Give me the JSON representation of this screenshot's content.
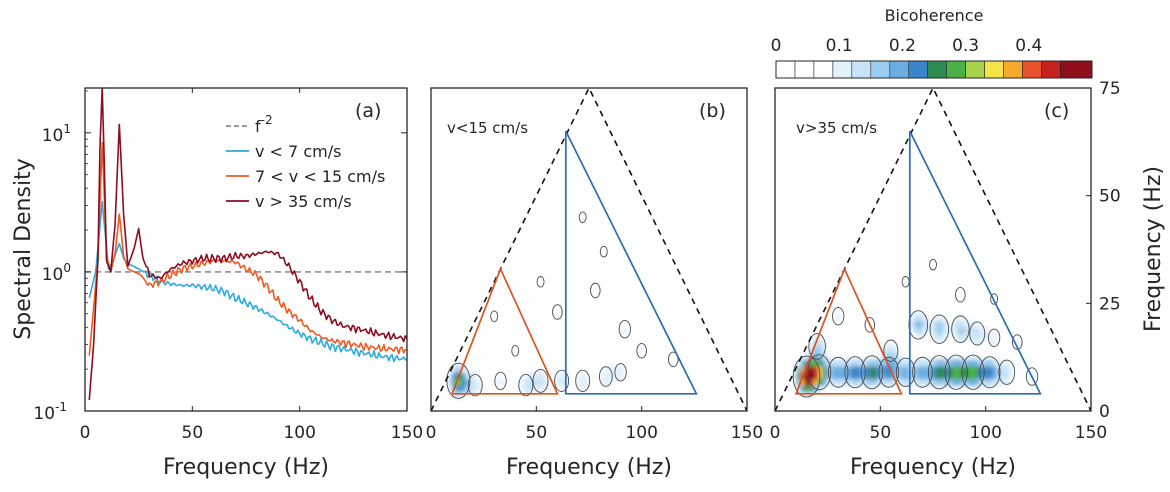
{
  "chart_data": [
    {
      "type": "line",
      "panel": "(a)",
      "xlabel": "Frequency (Hz)",
      "ylabel": "Spectral Density",
      "xlim": [
        0,
        150
      ],
      "ylim": [
        0.1,
        21
      ],
      "yscale": "log",
      "xticks": [
        "0",
        "50",
        "100",
        "150"
      ],
      "yticks": [
        {
          "value": 0.1,
          "base": "10",
          "exp": "-1"
        },
        {
          "value": 1,
          "base": "10",
          "exp": "0"
        },
        {
          "value": 10,
          "base": "10",
          "exp": "1"
        }
      ],
      "legend": [
        {
          "label": "f",
          "sup": "-2",
          "color": "#7f7f7f",
          "dash": true
        },
        {
          "label": "v < 7 cm/s",
          "color": "#2eaadf"
        },
        {
          "label": "7 < v < 15 cm/s",
          "color": "#ef5a1e"
        },
        {
          "label": "v > 35 cm/s",
          "color": "#8c0d1f"
        }
      ],
      "reference_level": 1.0,
      "series": [
        {
          "name": "v < 7 cm/s",
          "color": "#2eaadf",
          "points": [
            [
              2,
              0.65
            ],
            [
              5,
              1.0
            ],
            [
              8,
              3.2
            ],
            [
              9,
              2.2
            ],
            [
              11,
              1.05
            ],
            [
              13,
              1.2
            ],
            [
              16,
              1.6
            ],
            [
              18,
              1.25
            ],
            [
              20,
              1.15
            ],
            [
              25,
              1.05
            ],
            [
              30,
              0.95
            ],
            [
              35,
              0.85
            ],
            [
              40,
              0.82
            ],
            [
              45,
              0.8
            ],
            [
              50,
              0.8
            ],
            [
              55,
              0.78
            ],
            [
              60,
              0.76
            ],
            [
              65,
              0.72
            ],
            [
              70,
              0.65
            ],
            [
              75,
              0.6
            ],
            [
              80,
              0.55
            ],
            [
              85,
              0.5
            ],
            [
              90,
              0.45
            ],
            [
              95,
              0.4
            ],
            [
              100,
              0.36
            ],
            [
              105,
              0.33
            ],
            [
              110,
              0.31
            ],
            [
              115,
              0.29
            ],
            [
              120,
              0.28
            ],
            [
              130,
              0.26
            ],
            [
              140,
              0.245
            ],
            [
              150,
              0.235
            ]
          ]
        },
        {
          "name": "7 < v < 15 cm/s",
          "color": "#ef5a1e",
          "points": [
            [
              2,
              0.25
            ],
            [
              4,
              0.55
            ],
            [
              6,
              1.2
            ],
            [
              8,
              8.5
            ],
            [
              9,
              3.5
            ],
            [
              10,
              1.3
            ],
            [
              12,
              1.0
            ],
            [
              14,
              1.35
            ],
            [
              16,
              2.6
            ],
            [
              18,
              1.3
            ],
            [
              20,
              1.05
            ],
            [
              23,
              1.0
            ],
            [
              26,
              0.95
            ],
            [
              30,
              0.8
            ],
            [
              35,
              0.85
            ],
            [
              40,
              0.95
            ],
            [
              45,
              1.05
            ],
            [
              50,
              1.1
            ],
            [
              55,
              1.15
            ],
            [
              60,
              1.2
            ],
            [
              65,
              1.2
            ],
            [
              70,
              1.18
            ],
            [
              75,
              1.05
            ],
            [
              80,
              0.95
            ],
            [
              85,
              0.78
            ],
            [
              90,
              0.62
            ],
            [
              95,
              0.52
            ],
            [
              100,
              0.45
            ],
            [
              105,
              0.38
            ],
            [
              110,
              0.34
            ],
            [
              115,
              0.32
            ],
            [
              120,
              0.31
            ],
            [
              130,
              0.29
            ],
            [
              140,
              0.28
            ],
            [
              150,
              0.275
            ]
          ]
        },
        {
          "name": "v > 35 cm/s",
          "color": "#8c0d1f",
          "points": [
            [
              2,
              0.12
            ],
            [
              4,
              0.3
            ],
            [
              6,
              1.2
            ],
            [
              7,
              8.0
            ],
            [
              8,
              21.0
            ],
            [
              9,
              6.0
            ],
            [
              10,
              1.2
            ],
            [
              12,
              1.0
            ],
            [
              14,
              2.2
            ],
            [
              16,
              11.5
            ],
            [
              18,
              2.6
            ],
            [
              20,
              1.1
            ],
            [
              23,
              1.5
            ],
            [
              25,
              2.05
            ],
            [
              27,
              1.25
            ],
            [
              30,
              0.95
            ],
            [
              35,
              0.9
            ],
            [
              40,
              1.05
            ],
            [
              45,
              1.15
            ],
            [
              50,
              1.2
            ],
            [
              55,
              1.25
            ],
            [
              60,
              1.25
            ],
            [
              65,
              1.25
            ],
            [
              70,
              1.3
            ],
            [
              75,
              1.3
            ],
            [
              80,
              1.35
            ],
            [
              85,
              1.4
            ],
            [
              90,
              1.35
            ],
            [
              95,
              1.1
            ],
            [
              100,
              0.85
            ],
            [
              105,
              0.65
            ],
            [
              110,
              0.52
            ],
            [
              115,
              0.45
            ],
            [
              120,
              0.41
            ],
            [
              130,
              0.38
            ],
            [
              140,
              0.35
            ],
            [
              150,
              0.33
            ]
          ]
        }
      ]
    },
    {
      "type": "heatmap",
      "panel": "(b)",
      "condition": "v<15 cm/s",
      "xlabel": "Frequency (Hz)",
      "xlim": [
        0,
        150
      ],
      "ylim": [
        0,
        75
      ],
      "xticks": [
        "0",
        "50",
        "100",
        "150"
      ],
      "domain_apex": [
        75,
        75
      ],
      "orange_triangle": [
        [
          10,
          4
        ],
        [
          60,
          4
        ],
        [
          33,
          33
        ]
      ],
      "blue_triangle": [
        [
          64,
          4
        ],
        [
          126,
          4
        ],
        [
          64,
          65
        ]
      ],
      "blobs": [
        {
          "x": 13,
          "y": 7,
          "peak": 0.3
        },
        {
          "x": 21,
          "y": 6,
          "peak": 0.12
        },
        {
          "x": 33,
          "y": 7,
          "peak": 0.1
        },
        {
          "x": 45,
          "y": 6,
          "peak": 0.12
        },
        {
          "x": 52,
          "y": 7,
          "peak": 0.13
        },
        {
          "x": 62,
          "y": 7,
          "peak": 0.12
        },
        {
          "x": 72,
          "y": 7,
          "peak": 0.12
        },
        {
          "x": 83,
          "y": 8,
          "peak": 0.11
        },
        {
          "x": 90,
          "y": 9,
          "peak": 0.1
        },
        {
          "x": 60,
          "y": 23,
          "peak": 0.09
        },
        {
          "x": 78,
          "y": 28,
          "peak": 0.09
        },
        {
          "x": 92,
          "y": 19,
          "peak": 0.1
        },
        {
          "x": 100,
          "y": 14,
          "peak": 0.09
        },
        {
          "x": 52,
          "y": 30,
          "peak": 0.08
        },
        {
          "x": 82,
          "y": 37,
          "peak": 0.08
        },
        {
          "x": 72,
          "y": 45,
          "peak": 0.08
        },
        {
          "x": 115,
          "y": 12,
          "peak": 0.09
        },
        {
          "x": 40,
          "y": 14,
          "peak": 0.08
        },
        {
          "x": 30,
          "y": 22,
          "peak": 0.08
        }
      ]
    },
    {
      "type": "heatmap",
      "panel": "(c)",
      "condition": "v>35 cm/s",
      "xlabel": "Frequency (Hz)",
      "ylabel": "Frequency (Hz)",
      "xlim": [
        0,
        150
      ],
      "ylim": [
        0,
        75
      ],
      "xticks": [
        "0",
        "50",
        "100",
        "150"
      ],
      "yticks": [
        "0",
        "25",
        "50",
        "75"
      ],
      "domain_apex": [
        75,
        75
      ],
      "orange_triangle": [
        [
          10,
          4
        ],
        [
          60,
          4
        ],
        [
          33,
          33
        ]
      ],
      "blue_triangle": [
        [
          64,
          4
        ],
        [
          126,
          4
        ],
        [
          64,
          65
        ]
      ],
      "blobs": [
        {
          "x": 15,
          "y": 8,
          "peak": 0.5
        },
        {
          "x": 21,
          "y": 9,
          "peak": 0.3
        },
        {
          "x": 30,
          "y": 9,
          "peak": 0.2
        },
        {
          "x": 38,
          "y": 9,
          "peak": 0.22
        },
        {
          "x": 46,
          "y": 9,
          "peak": 0.25
        },
        {
          "x": 54,
          "y": 9,
          "peak": 0.2
        },
        {
          "x": 62,
          "y": 9,
          "peak": 0.18
        },
        {
          "x": 70,
          "y": 9,
          "peak": 0.2
        },
        {
          "x": 78,
          "y": 9,
          "peak": 0.26
        },
        {
          "x": 86,
          "y": 9,
          "peak": 0.28
        },
        {
          "x": 94,
          "y": 9,
          "peak": 0.28
        },
        {
          "x": 102,
          "y": 9,
          "peak": 0.22
        },
        {
          "x": 110,
          "y": 9,
          "peak": 0.14
        },
        {
          "x": 20,
          "y": 15,
          "peak": 0.15
        },
        {
          "x": 55,
          "y": 14,
          "peak": 0.12
        },
        {
          "x": 68,
          "y": 20,
          "peak": 0.18
        },
        {
          "x": 78,
          "y": 19,
          "peak": 0.18
        },
        {
          "x": 88,
          "y": 19,
          "peak": 0.16
        },
        {
          "x": 96,
          "y": 18,
          "peak": 0.13
        },
        {
          "x": 104,
          "y": 17,
          "peak": 0.1
        },
        {
          "x": 30,
          "y": 22,
          "peak": 0.1
        },
        {
          "x": 45,
          "y": 20,
          "peak": 0.09
        },
        {
          "x": 62,
          "y": 30,
          "peak": 0.08
        },
        {
          "x": 75,
          "y": 34,
          "peak": 0.08
        },
        {
          "x": 88,
          "y": 27,
          "peak": 0.09
        },
        {
          "x": 104,
          "y": 26,
          "peak": 0.08
        },
        {
          "x": 115,
          "y": 16,
          "peak": 0.09
        },
        {
          "x": 122,
          "y": 8,
          "peak": 0.1
        }
      ]
    }
  ],
  "colorbar": {
    "title": "Bicoherence",
    "ticks": [
      {
        "value": 0,
        "label": "0"
      },
      {
        "value": 0.1,
        "label": "0.1"
      },
      {
        "value": 0.2,
        "label": "0.2"
      },
      {
        "value": 0.3,
        "label": "0.3"
      },
      {
        "value": 0.4,
        "label": "0.4"
      }
    ],
    "range": [
      0,
      0.5
    ],
    "levels": [
      0.03,
      0.06,
      0.09,
      0.12,
      0.15,
      0.18,
      0.21,
      0.24,
      0.27,
      0.3,
      0.33,
      0.36,
      0.39,
      0.42,
      0.45
    ],
    "colors": [
      "#ffffff",
      "#ffffff",
      "#ffffff",
      "#e3f1fb",
      "#c6e3f7",
      "#9cccf0",
      "#6aaee3",
      "#3b86cb",
      "#2f8a52",
      "#4cb046",
      "#a8d24a",
      "#f3e64a",
      "#f6a92d",
      "#e8522c",
      "#c6211f",
      "#8e0f1c"
    ]
  }
}
